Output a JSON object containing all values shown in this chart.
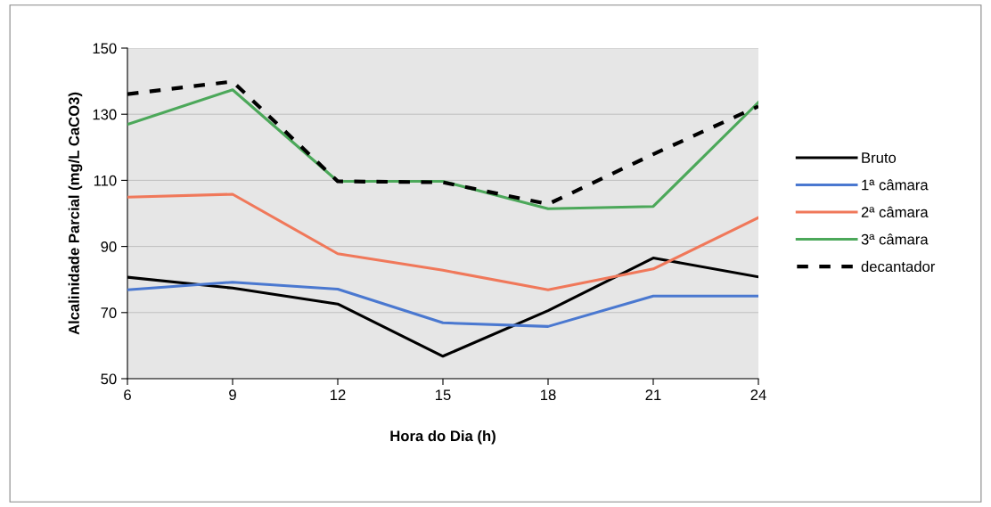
{
  "chart_data": {
    "type": "line",
    "xlabel": "Hora do Dia (h)",
    "ylabel": "Alcalinidade Parcial (mg/L CaCO3)",
    "x": [
      6,
      9,
      12,
      15,
      18,
      21,
      24
    ],
    "xlim": [
      6,
      24
    ],
    "xticks": [
      6,
      9,
      12,
      15,
      18,
      21,
      24
    ],
    "ylim": [
      50,
      150
    ],
    "yticks": [
      50,
      70,
      90,
      110,
      130,
      150
    ],
    "grid": "y",
    "legend": "right",
    "marker": "none",
    "series": [
      {
        "name": "Bruto",
        "color": "#000000",
        "values": [
          80.7,
          77.4,
          72.6,
          56.8,
          70.6,
          86.5,
          80.8
        ]
      },
      {
        "name": "1ª câmara",
        "color": "#4a78d0",
        "values": [
          76.9,
          79.2,
          77.1,
          66.9,
          65.8,
          75,
          75
        ]
      },
      {
        "name": "2ª câmara",
        "color": "#f0785a",
        "values": [
          104.9,
          105.8,
          87.8,
          82.8,
          76.9,
          83.2,
          98.7
        ]
      },
      {
        "name": "3ª câmara",
        "color": "#4ca85a",
        "values": [
          126.9,
          137.4,
          109.7,
          109.7,
          101.4,
          102.1,
          133.6
        ]
      },
      {
        "name": "decantador",
        "color": "#000000",
        "line_style": "dashed",
        "values": [
          136.1,
          139.9,
          109.7,
          109.4,
          102.8,
          117.9,
          132.4
        ]
      }
    ]
  }
}
